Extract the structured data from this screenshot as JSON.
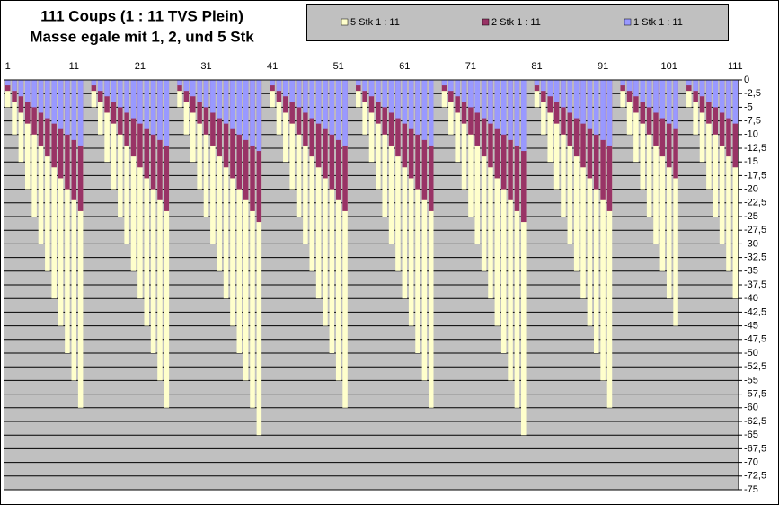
{
  "chart_data": {
    "type": "bar",
    "title": "111 Coups (1 : 11 TVS Plein)",
    "subtitle": "Masse egale mit 1, 2, und 5 Stk",
    "categories": [
      "1",
      null,
      null,
      null,
      null,
      null,
      null,
      null,
      null,
      null,
      "11",
      null,
      null,
      null,
      null,
      null,
      null,
      null,
      null,
      null,
      "21",
      null,
      null,
      null,
      null,
      null,
      null,
      null,
      null,
      null,
      "31",
      null,
      null,
      null,
      null,
      null,
      null,
      null,
      null,
      null,
      "41",
      null,
      null,
      null,
      null,
      null,
      null,
      null,
      null,
      null,
      "51",
      null,
      null,
      null,
      null,
      null,
      null,
      null,
      null,
      null,
      "61",
      null,
      null,
      null,
      null,
      null,
      null,
      null,
      null,
      null,
      "71",
      null,
      null,
      null,
      null,
      null,
      null,
      null,
      null,
      null,
      "81",
      null,
      null,
      null,
      null,
      null,
      null,
      null,
      null,
      null,
      "91",
      null,
      null,
      null,
      null,
      null,
      null,
      null,
      null,
      null,
      "101",
      null,
      null,
      null,
      null,
      null,
      null,
      null,
      null,
      null,
      "111"
    ],
    "series": [
      {
        "name": "5 Stk 1 : 11",
        "color": "#ffffcc",
        "values": [
          -5,
          -10,
          -15,
          -20,
          -25,
          -30,
          -35,
          -40,
          -45,
          -50,
          -55,
          -60,
          0,
          -5,
          -10,
          -15,
          -20,
          -25,
          -30,
          -35,
          -40,
          -45,
          -50,
          -55,
          -60,
          0,
          -5,
          -10,
          -15,
          -20,
          -25,
          -30,
          -35,
          -40,
          -45,
          -50,
          -55,
          -60,
          -65,
          0,
          -5,
          -10,
          -15,
          -20,
          -25,
          -30,
          -35,
          -40,
          -45,
          -50,
          -55,
          -60,
          0,
          -5,
          -10,
          -15,
          -20,
          -25,
          -30,
          -35,
          -40,
          -45,
          -50,
          -55,
          -60,
          0,
          -5,
          -10,
          -15,
          -20,
          -25,
          -30,
          -35,
          -40,
          -45,
          -50,
          -55,
          -60,
          -65,
          0,
          -5,
          -10,
          -15,
          -20,
          -25,
          -30,
          -35,
          -40,
          -45,
          -50,
          -55,
          -60,
          0,
          -5,
          -10,
          -15,
          -20,
          -25,
          -30,
          -35,
          -40,
          -45,
          0,
          -5,
          -10,
          -15,
          -20,
          -25,
          -30,
          -35,
          -40
        ]
      },
      {
        "name": "2 Stk 1 : 11",
        "color": "#993366",
        "values": [
          -2,
          -4,
          -6,
          -8,
          -10,
          -12,
          -14,
          -16,
          -18,
          -20,
          -22,
          -24,
          0,
          -2,
          -4,
          -6,
          -8,
          -10,
          -12,
          -14,
          -16,
          -18,
          -20,
          -22,
          -24,
          0,
          -2,
          -4,
          -6,
          -8,
          -10,
          -12,
          -14,
          -16,
          -18,
          -20,
          -22,
          -24,
          -26,
          0,
          -2,
          -4,
          -6,
          -8,
          -10,
          -12,
          -14,
          -16,
          -18,
          -20,
          -22,
          -24,
          0,
          -2,
          -4,
          -6,
          -8,
          -10,
          -12,
          -14,
          -16,
          -18,
          -20,
          -22,
          -24,
          0,
          -2,
          -4,
          -6,
          -8,
          -10,
          -12,
          -14,
          -16,
          -18,
          -20,
          -22,
          -24,
          -26,
          0,
          -2,
          -4,
          -6,
          -8,
          -10,
          -12,
          -14,
          -16,
          -18,
          -20,
          -22,
          -24,
          0,
          -2,
          -4,
          -6,
          -8,
          -10,
          -12,
          -14,
          -16,
          -18,
          0,
          -2,
          -4,
          -6,
          -8,
          -10,
          -12,
          -14,
          -16
        ]
      },
      {
        "name": "1 Stk 1 : 11",
        "color": "#9999ff",
        "values": [
          -1,
          -2,
          -3,
          -4,
          -5,
          -6,
          -7,
          -8,
          -9,
          -10,
          -11,
          -12,
          0,
          -1,
          -2,
          -3,
          -4,
          -5,
          -6,
          -7,
          -8,
          -9,
          -10,
          -11,
          -12,
          0,
          -1,
          -2,
          -3,
          -4,
          -5,
          -6,
          -7,
          -8,
          -9,
          -10,
          -11,
          -12,
          -13,
          0,
          -1,
          -2,
          -3,
          -4,
          -5,
          -6,
          -7,
          -8,
          -9,
          -10,
          -11,
          -12,
          0,
          -1,
          -2,
          -3,
          -4,
          -5,
          -6,
          -7,
          -8,
          -9,
          -10,
          -11,
          -12,
          0,
          -1,
          -2,
          -3,
          -4,
          -5,
          -6,
          -7,
          -8,
          -9,
          -10,
          -11,
          -12,
          -13,
          0,
          -1,
          -2,
          -3,
          -4,
          -5,
          -6,
          -7,
          -8,
          -9,
          -10,
          -11,
          -12,
          0,
          -1,
          -2,
          -3,
          -4,
          -5,
          -6,
          -7,
          -8,
          -9,
          0,
          -1,
          -2,
          -3,
          -4,
          -5,
          -6,
          -7,
          -8
        ]
      }
    ],
    "ylim": [
      -75,
      0
    ],
    "yticks": [
      0,
      {
        "value": -2.5,
        "label": "-2,5"
      },
      -5,
      {
        "value": -7.5,
        "label": "-7,5"
      },
      -10,
      {
        "value": -12.5,
        "label": "-12,5"
      },
      -15,
      {
        "value": -17.5,
        "label": "-17,5"
      },
      -20,
      {
        "value": -22.5,
        "label": "-22,5"
      },
      -25,
      {
        "value": -27.5,
        "label": "-27,5"
      },
      -30,
      {
        "value": -32.5,
        "label": "-32,5"
      },
      -35,
      {
        "value": -37.5,
        "label": "-37,5"
      },
      -40,
      {
        "value": -42.5,
        "label": "-42,5"
      },
      -45,
      {
        "value": -47.5,
        "label": "-47,5"
      },
      -50,
      {
        "value": -52.5,
        "label": "-52,5"
      },
      -55,
      {
        "value": -57.5,
        "label": "-57,5"
      },
      -60,
      {
        "value": -62.5,
        "label": "-62,5"
      },
      -65,
      {
        "value": -67.5,
        "label": "-67,5"
      },
      -70,
      {
        "value": -72.5,
        "label": "-72,5"
      },
      -75
    ],
    "grid": true,
    "legend": "top"
  }
}
